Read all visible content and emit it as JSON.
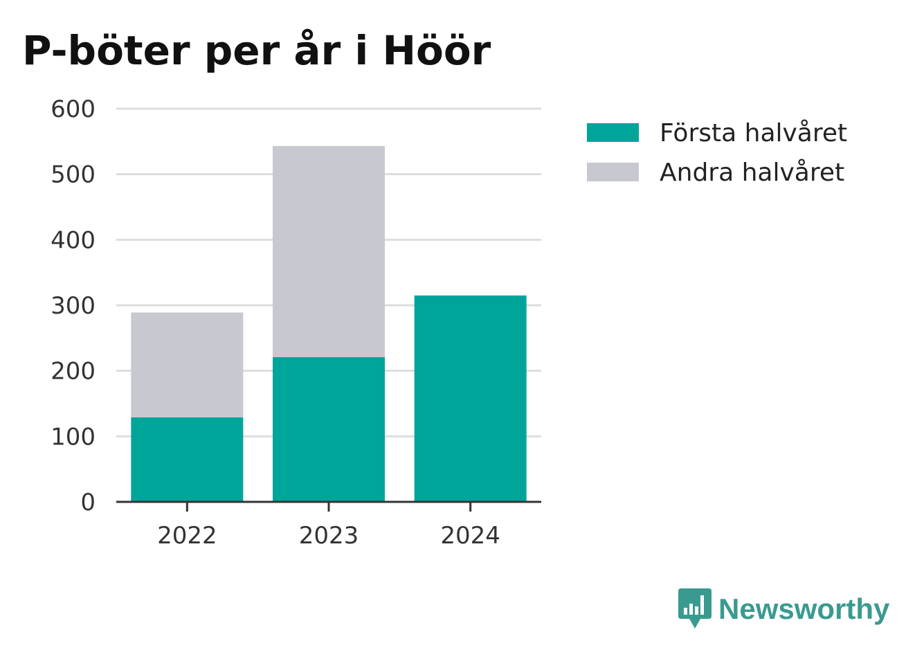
{
  "chart_title": "P-böter per år i Höör",
  "chart_data": {
    "type": "bar",
    "stacked": true,
    "categories": [
      "2022",
      "2023",
      "2024"
    ],
    "series": [
      {
        "name": "Första halvåret",
        "values": [
          129,
          221,
          315
        ],
        "color": "#00a59a"
      },
      {
        "name": "Andra halvåret",
        "values": [
          160,
          322,
          0
        ],
        "color": "#c8c8d0"
      }
    ],
    "ylim": [
      0,
      600
    ],
    "yticks": [
      0,
      100,
      200,
      300,
      400,
      500,
      600
    ],
    "grid": true,
    "legend": "top-right"
  },
  "brand": {
    "name": "Newsworthy",
    "icon": "newsworthy-logo-icon",
    "color": "#3a9a90"
  }
}
